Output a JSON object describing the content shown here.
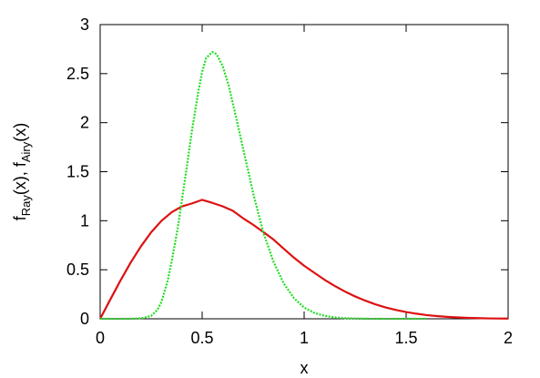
{
  "chart_data": {
    "type": "line",
    "title": "",
    "xlabel": "x",
    "ylabel": {
      "parts": [
        {
          "text": "f",
          "sub": false
        },
        {
          "text": "Ray",
          "sub": true
        },
        {
          "text": "(x), f",
          "sub": false
        },
        {
          "text": "Airy",
          "sub": true
        },
        {
          "text": "(x)",
          "sub": false
        }
      ]
    },
    "xlim": [
      0,
      2
    ],
    "ylim": [
      0,
      3
    ],
    "xticks": [
      0,
      0.5,
      1,
      1.5,
      2
    ],
    "xtick_labels": [
      "0",
      "0.5",
      "1",
      "1.5",
      "2"
    ],
    "yticks": [
      0,
      0.5,
      1,
      1.5,
      2,
      2.5,
      3
    ],
    "ytick_labels": [
      "0",
      "0.5",
      "1",
      "1.5",
      "2",
      "2.5",
      "3"
    ],
    "grid": false,
    "legend": "none",
    "series": [
      {
        "color": "#dd1111",
        "dash": "solid",
        "x": [
          0.0,
          0.05,
          0.1,
          0.15,
          0.2,
          0.25,
          0.3,
          0.35,
          0.4,
          0.45,
          0.5,
          0.55,
          0.6,
          0.65,
          0.7,
          0.75,
          0.8,
          0.85,
          0.9,
          0.95,
          1.0,
          1.05,
          1.1,
          1.15,
          1.2,
          1.25,
          1.3,
          1.35,
          1.4,
          1.45,
          1.5,
          1.55,
          1.6,
          1.65,
          1.7,
          1.75,
          1.8,
          1.85,
          1.9,
          1.95,
          2.0
        ],
        "y": [
          0.0,
          0.198,
          0.392,
          0.575,
          0.739,
          0.882,
          0.998,
          1.086,
          1.145,
          1.176,
          1.213,
          1.182,
          1.147,
          1.102,
          1.026,
          0.959,
          0.885,
          0.808,
          0.715,
          0.623,
          0.541,
          0.469,
          0.398,
          0.335,
          0.278,
          0.228,
          0.185,
          0.147,
          0.116,
          0.09,
          0.069,
          0.052,
          0.038,
          0.028,
          0.02,
          0.014,
          0.01,
          0.007,
          0.004,
          0.003,
          0.002
        ]
      },
      {
        "color": "#22dd22",
        "dash": "dotted",
        "x": [
          0.0,
          0.15,
          0.2,
          0.25,
          0.28,
          0.3,
          0.33,
          0.35,
          0.38,
          0.4,
          0.42,
          0.45,
          0.48,
          0.5,
          0.52,
          0.55,
          0.57,
          0.6,
          0.63,
          0.65,
          0.68,
          0.7,
          0.73,
          0.75,
          0.78,
          0.8,
          0.85,
          0.9,
          0.95,
          1.0,
          1.05,
          1.1,
          1.15,
          1.2,
          1.3,
          1.4,
          1.5,
          1.6
        ],
        "y": [
          0.0,
          0.0,
          0.005,
          0.03,
          0.09,
          0.17,
          0.38,
          0.58,
          0.92,
          1.2,
          1.48,
          1.92,
          2.3,
          2.52,
          2.66,
          2.72,
          2.7,
          2.58,
          2.38,
          2.2,
          1.93,
          1.74,
          1.47,
          1.28,
          1.04,
          0.88,
          0.58,
          0.36,
          0.21,
          0.115,
          0.06,
          0.03,
          0.014,
          0.006,
          0.001,
          0.0,
          0.0,
          0.0
        ]
      }
    ]
  }
}
